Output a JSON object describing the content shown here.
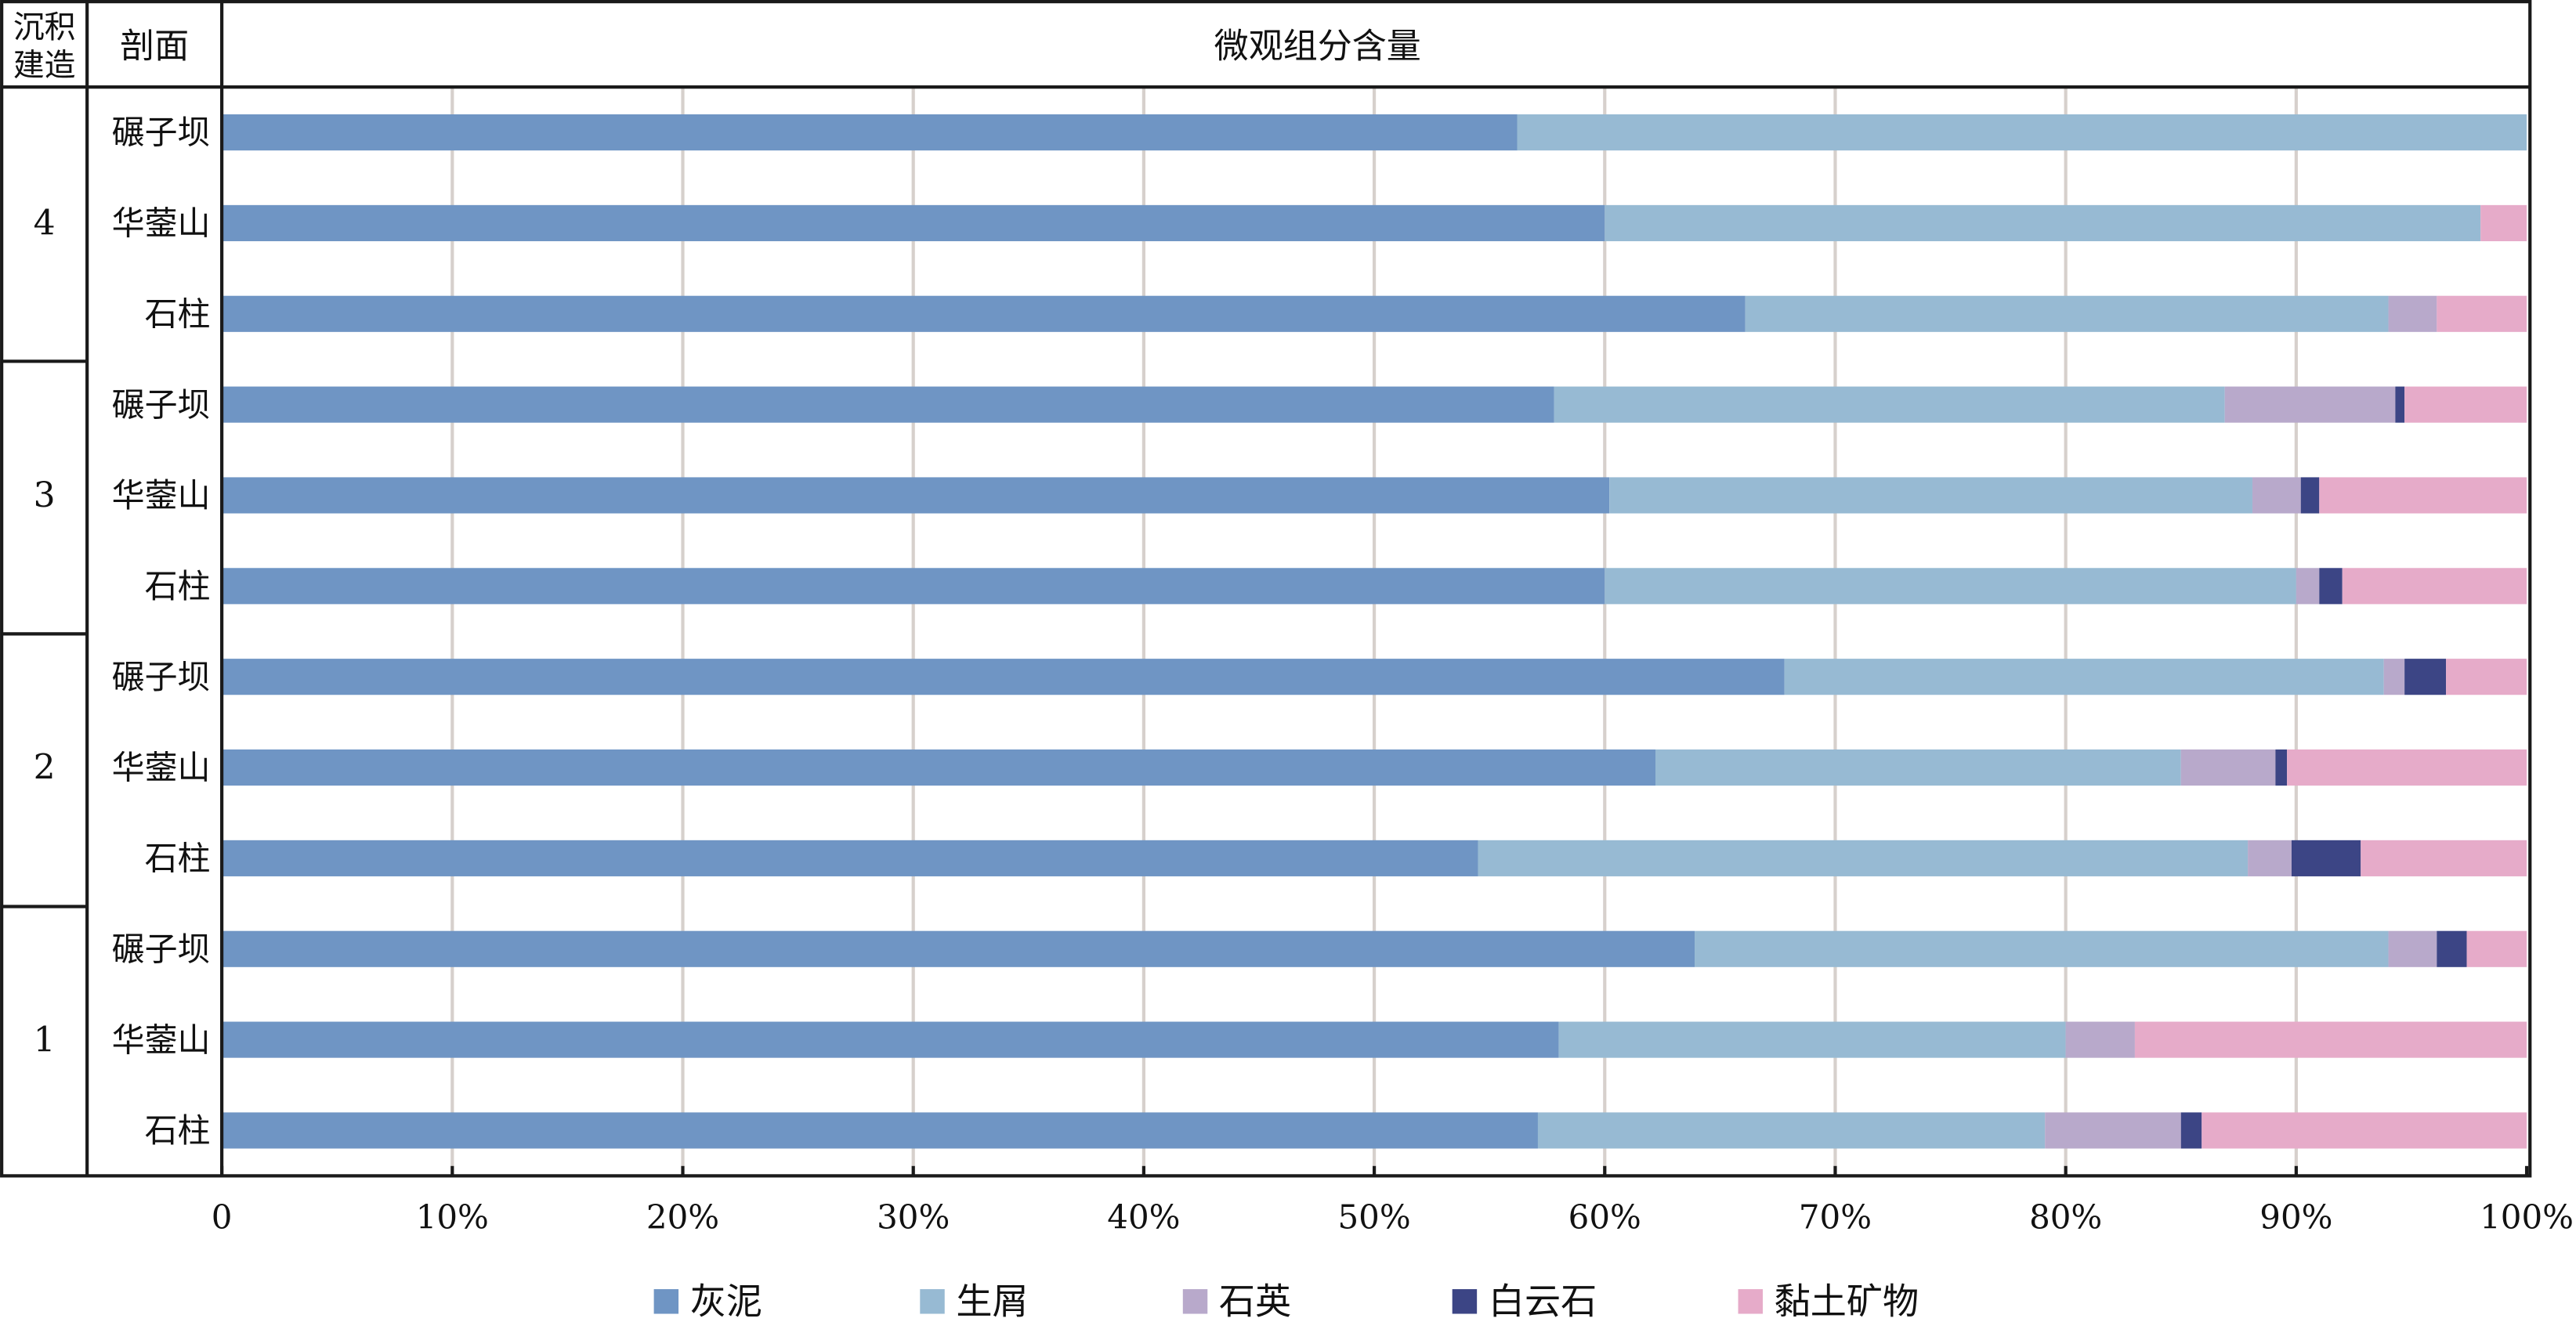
{
  "chart_data": {
    "type": "bar",
    "orientation": "horizontal-stacked-percent",
    "title": "微观组分含量",
    "header": {
      "group_col": "沉积建造",
      "group_col_line1": "沉积",
      "group_col_line2": "建造",
      "section_col": "剖面"
    },
    "xlim": [
      0,
      100
    ],
    "xticks": [
      "0",
      "10%",
      "20%",
      "30%",
      "40%",
      "50%",
      "60%",
      "70%",
      "80%",
      "90%",
      "100%"
    ],
    "grid": true,
    "legend_position": "bottom",
    "series": [
      {
        "name": "灰泥",
        "color": "#6f95c4"
      },
      {
        "name": "生屑",
        "color": "#97bad3"
      },
      {
        "name": "石英",
        "color": "#b8a9cb"
      },
      {
        "name": "白云石",
        "color": "#3c4585"
      },
      {
        "name": "黏土矿物",
        "color": "#e6abc9"
      }
    ],
    "groups": [
      {
        "label": "4",
        "rows": [
          {
            "section": "碾子坝",
            "values": [
              56.2,
              43.8,
              0,
              0,
              0
            ]
          },
          {
            "section": "华蓥山",
            "values": [
              60.0,
              38.0,
              0,
              0,
              2.0
            ]
          },
          {
            "section": "石柱",
            "values": [
              66.1,
              27.9,
              2.1,
              0,
              3.9
            ]
          }
        ]
      },
      {
        "label": "3",
        "rows": [
          {
            "section": "碾子坝",
            "values": [
              57.8,
              29.1,
              7.4,
              0.4,
              5.3
            ]
          },
          {
            "section": "华蓥山",
            "values": [
              60.2,
              27.9,
              2.1,
              0.8,
              9.0
            ]
          },
          {
            "section": "石柱",
            "values": [
              60.0,
              30.0,
              1.0,
              1.0,
              8.0
            ]
          }
        ]
      },
      {
        "label": "2",
        "rows": [
          {
            "section": "碾子坝",
            "values": [
              67.8,
              26.0,
              0.9,
              1.8,
              3.5
            ]
          },
          {
            "section": "华蓥山",
            "values": [
              62.2,
              22.8,
              4.1,
              0.5,
              10.4
            ]
          },
          {
            "section": "石柱",
            "values": [
              54.5,
              33.4,
              1.9,
              3.0,
              7.2
            ]
          }
        ]
      },
      {
        "label": "1",
        "rows": [
          {
            "section": "碾子坝",
            "values": [
              63.9,
              30.1,
              2.1,
              1.3,
              2.6
            ]
          },
          {
            "section": "华蓥山",
            "values": [
              58.0,
              22.0,
              3.0,
              0,
              17.0
            ]
          },
          {
            "section": "石柱",
            "values": [
              57.1,
              22.0,
              5.9,
              0.9,
              14.1
            ]
          }
        ]
      }
    ]
  }
}
